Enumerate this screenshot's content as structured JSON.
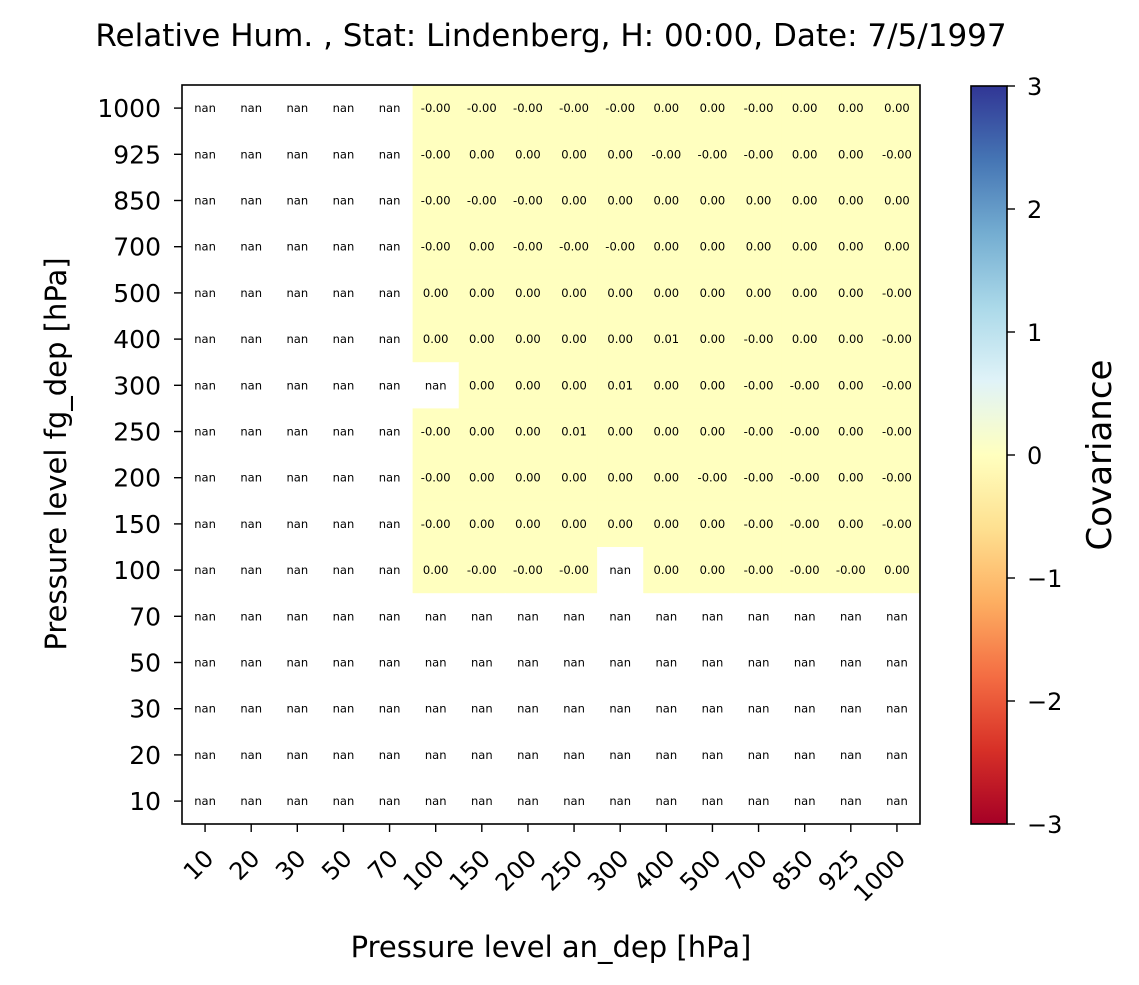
{
  "chart_data": {
    "type": "heatmap",
    "title": "Relative Hum. , Stat: Lindenberg, H: 00:00, Date: 7/5/1997",
    "xlabel": "Pressure level an_dep [hPa]",
    "ylabel": "Pressure level fg_dep [hPa]",
    "x_categories": [
      "10",
      "20",
      "30",
      "50",
      "70",
      "100",
      "150",
      "200",
      "250",
      "300",
      "400",
      "500",
      "700",
      "850",
      "925",
      "1000"
    ],
    "y_categories": [
      "1000",
      "925",
      "850",
      "700",
      "500",
      "400",
      "300",
      "250",
      "200",
      "150",
      "100",
      "70",
      "50",
      "30",
      "20",
      "10"
    ],
    "cells": [
      [
        "nan",
        "nan",
        "nan",
        "nan",
        "nan",
        "-0.00",
        "-0.00",
        "-0.00",
        "-0.00",
        "-0.00",
        "0.00",
        "0.00",
        "-0.00",
        "0.00",
        "0.00",
        "0.00"
      ],
      [
        "nan",
        "nan",
        "nan",
        "nan",
        "nan",
        "-0.00",
        "0.00",
        "0.00",
        "0.00",
        "0.00",
        "-0.00",
        "-0.00",
        "-0.00",
        "0.00",
        "0.00",
        "-0.00"
      ],
      [
        "nan",
        "nan",
        "nan",
        "nan",
        "nan",
        "-0.00",
        "-0.00",
        "-0.00",
        "0.00",
        "0.00",
        "0.00",
        "0.00",
        "0.00",
        "0.00",
        "0.00",
        "0.00"
      ],
      [
        "nan",
        "nan",
        "nan",
        "nan",
        "nan",
        "-0.00",
        "0.00",
        "-0.00",
        "-0.00",
        "-0.00",
        "0.00",
        "0.00",
        "0.00",
        "0.00",
        "0.00",
        "0.00"
      ],
      [
        "nan",
        "nan",
        "nan",
        "nan",
        "nan",
        "0.00",
        "0.00",
        "0.00",
        "0.00",
        "0.00",
        "0.00",
        "0.00",
        "0.00",
        "0.00",
        "0.00",
        "-0.00"
      ],
      [
        "nan",
        "nan",
        "nan",
        "nan",
        "nan",
        "0.00",
        "0.00",
        "0.00",
        "0.00",
        "0.00",
        "0.01",
        "0.00",
        "-0.00",
        "0.00",
        "0.00",
        "-0.00"
      ],
      [
        "nan",
        "nan",
        "nan",
        "nan",
        "nan",
        "nan",
        "0.00",
        "0.00",
        "0.00",
        "0.01",
        "0.00",
        "0.00",
        "-0.00",
        "-0.00",
        "0.00",
        "-0.00"
      ],
      [
        "nan",
        "nan",
        "nan",
        "nan",
        "nan",
        "-0.00",
        "0.00",
        "0.00",
        "0.01",
        "0.00",
        "0.00",
        "0.00",
        "-0.00",
        "-0.00",
        "0.00",
        "-0.00"
      ],
      [
        "nan",
        "nan",
        "nan",
        "nan",
        "nan",
        "-0.00",
        "0.00",
        "0.00",
        "0.00",
        "0.00",
        "0.00",
        "-0.00",
        "-0.00",
        "-0.00",
        "0.00",
        "-0.00"
      ],
      [
        "nan",
        "nan",
        "nan",
        "nan",
        "nan",
        "-0.00",
        "0.00",
        "0.00",
        "0.00",
        "0.00",
        "0.00",
        "0.00",
        "-0.00",
        "-0.00",
        "0.00",
        "-0.00"
      ],
      [
        "nan",
        "nan",
        "nan",
        "nan",
        "nan",
        "0.00",
        "-0.00",
        "-0.00",
        "-0.00",
        "nan",
        "0.00",
        "0.00",
        "-0.00",
        "-0.00",
        "-0.00",
        "0.00"
      ],
      [
        "nan",
        "nan",
        "nan",
        "nan",
        "nan",
        "nan",
        "nan",
        "nan",
        "nan",
        "nan",
        "nan",
        "nan",
        "nan",
        "nan",
        "nan",
        "nan"
      ],
      [
        "nan",
        "nan",
        "nan",
        "nan",
        "nan",
        "nan",
        "nan",
        "nan",
        "nan",
        "nan",
        "nan",
        "nan",
        "nan",
        "nan",
        "nan",
        "nan"
      ],
      [
        "nan",
        "nan",
        "nan",
        "nan",
        "nan",
        "nan",
        "nan",
        "nan",
        "nan",
        "nan",
        "nan",
        "nan",
        "nan",
        "nan",
        "nan",
        "nan"
      ],
      [
        "nan",
        "nan",
        "nan",
        "nan",
        "nan",
        "nan",
        "nan",
        "nan",
        "nan",
        "nan",
        "nan",
        "nan",
        "nan",
        "nan",
        "nan",
        "nan"
      ],
      [
        "nan",
        "nan",
        "nan",
        "nan",
        "nan",
        "nan",
        "nan",
        "nan",
        "nan",
        "nan",
        "nan",
        "nan",
        "nan",
        "nan",
        "nan",
        "nan"
      ]
    ],
    "colorbar": {
      "label": "Covariance",
      "range": [
        -3,
        3
      ],
      "ticks": [
        "3",
        "2",
        "1",
        "0",
        "−1",
        "−2",
        "−3"
      ],
      "colormap": "RdYlBu",
      "colors": [
        "#a50026",
        "#d73027",
        "#f46d43",
        "#fdae61",
        "#fee090",
        "#ffffbf",
        "#e0f3f8",
        "#abd9e9",
        "#74add1",
        "#4575b4",
        "#313695"
      ],
      "zero_color": "#ffffbf",
      "nan_color": "#ffffff"
    },
    "grid": false
  }
}
